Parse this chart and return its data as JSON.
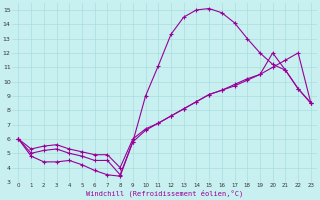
{
  "xlabel": "Windchill (Refroidissement éolien,°C)",
  "bg_color": "#c8f0f0",
  "line_color": "#990099",
  "grid_color": "#aadddd",
  "grid_color2": "#bbcccc",
  "xlim": [
    -0.5,
    23.5
  ],
  "ylim": [
    3,
    15.5
  ],
  "xticks": [
    0,
    1,
    2,
    3,
    4,
    5,
    6,
    7,
    8,
    9,
    10,
    11,
    12,
    13,
    14,
    15,
    16,
    17,
    18,
    19,
    20,
    21,
    22,
    23
  ],
  "yticks": [
    3,
    4,
    5,
    6,
    7,
    8,
    9,
    10,
    11,
    12,
    13,
    14,
    15
  ],
  "line1_x": [
    0,
    1,
    2,
    3,
    4,
    5,
    6,
    7,
    8,
    9,
    10,
    11,
    12,
    13,
    14,
    15,
    16,
    17,
    18,
    19,
    20,
    21,
    22,
    23
  ],
  "line1_y": [
    6.0,
    4.8,
    4.4,
    4.4,
    4.5,
    4.2,
    3.8,
    3.5,
    3.4,
    5.8,
    9.0,
    11.1,
    13.3,
    14.5,
    15.0,
    15.1,
    14.8,
    14.1,
    13.0,
    12.0,
    11.2,
    10.8,
    9.5,
    8.5
  ],
  "line2_x": [
    0,
    1,
    2,
    3,
    4,
    5,
    6,
    7,
    8,
    9,
    10,
    11,
    12,
    13,
    14,
    15,
    16,
    17,
    18,
    19,
    20,
    21,
    22,
    23
  ],
  "line2_y": [
    6.0,
    5.0,
    5.2,
    5.3,
    5.0,
    4.8,
    4.5,
    4.5,
    3.5,
    5.8,
    6.6,
    7.1,
    7.6,
    8.1,
    8.6,
    9.1,
    9.4,
    9.7,
    10.1,
    10.5,
    12.0,
    10.8,
    9.5,
    8.5
  ],
  "line3_x": [
    0,
    1,
    2,
    3,
    4,
    5,
    6,
    7,
    8,
    9,
    10,
    11,
    12,
    13,
    14,
    15,
    16,
    17,
    18,
    19,
    20,
    21,
    22,
    23
  ],
  "line3_y": [
    6.0,
    5.3,
    5.5,
    5.6,
    5.3,
    5.1,
    4.9,
    4.9,
    4.0,
    6.0,
    6.7,
    7.1,
    7.6,
    8.1,
    8.6,
    9.1,
    9.4,
    9.8,
    10.2,
    10.5,
    11.0,
    11.5,
    12.0,
    8.5
  ]
}
